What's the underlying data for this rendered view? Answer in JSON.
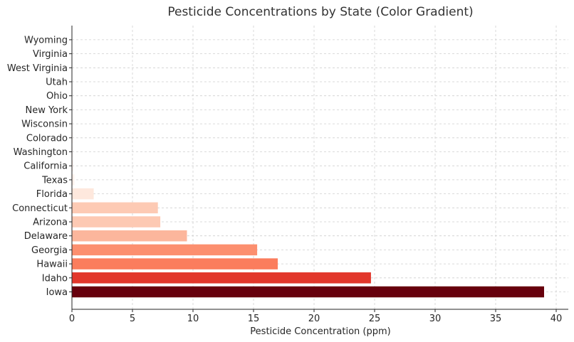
{
  "chart_data": {
    "type": "bar",
    "orientation": "horizontal",
    "title": "Pesticide Concentrations by State (Color Gradient)",
    "xlabel": "Pesticide Concentration (ppm)",
    "ylabel": "",
    "xlim": [
      0,
      41
    ],
    "xticks": [
      0,
      5,
      10,
      15,
      20,
      25,
      30,
      35,
      40
    ],
    "grid": true,
    "categories": [
      "Iowa",
      "Idaho",
      "Hawaii",
      "Georgia",
      "Delaware",
      "Arizona",
      "Connecticut",
      "Florida",
      "Texas",
      "California",
      "Washington",
      "Colorado",
      "Wisconsin",
      "New York",
      "Ohio",
      "Utah",
      "West Virginia",
      "Virginia",
      "Wyoming"
    ],
    "values": [
      39.0,
      24.7,
      17.0,
      15.3,
      9.5,
      7.3,
      7.1,
      1.8,
      0.2,
      0.1,
      0.05,
      0.05,
      0.04,
      0.03,
      0.03,
      0.02,
      0.02,
      0.01,
      0.01
    ],
    "colors": [
      "#67000d",
      "#e2372b",
      "#fb7d5d",
      "#fc8f6f",
      "#fcb69c",
      "#fdc9b3",
      "#fdcab4",
      "#fee8dd",
      "#fff2ec",
      "#fff3ee",
      "#fff4ef",
      "#fff4ef",
      "#fff4ef",
      "#fff4ef",
      "#fff5f0",
      "#fff5f0",
      "#fff5f0",
      "#fff5f0",
      "#fff5f0"
    ]
  }
}
